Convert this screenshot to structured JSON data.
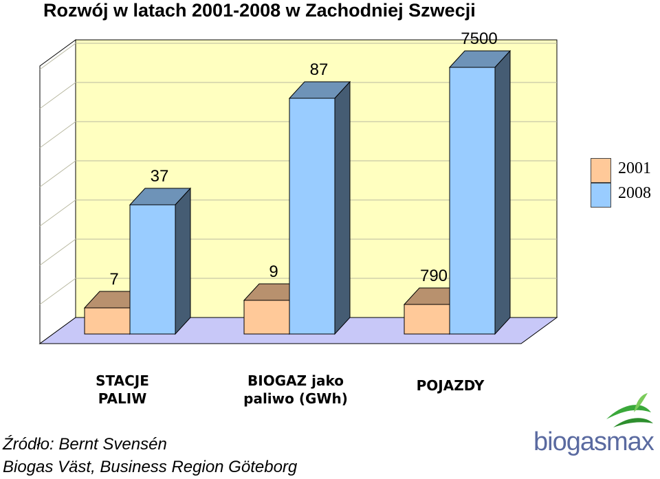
{
  "chart_data": {
    "type": "bar",
    "title": "Rozwój w latach 2001-2008 w Zachodniej Szwecji",
    "categories": [
      "STACJE\nPALIW",
      "BIOGAZ jako\npaliwo (GWh)",
      "POJAZDY"
    ],
    "series": [
      {
        "name": "2001",
        "values": [
          7,
          9,
          790
        ],
        "labels": [
          "7",
          "9",
          "790"
        ],
        "color": "#FFC999"
      },
      {
        "name": "2008",
        "values": [
          37,
          87,
          7500
        ],
        "labels": [
          "37",
          "87",
          "7500"
        ],
        "color": "#99CCFF"
      }
    ],
    "legend_position": "right",
    "three_d": true,
    "note": ""
  },
  "colors": {
    "wall": "#FFFFC0",
    "floor": "#C8C8F8"
  },
  "source": {
    "line1": "Źródło: Bernt Svensén",
    "line2": "Biogas Väst, Business Region Göteborg"
  },
  "logo": {
    "text": "biogasmax"
  }
}
